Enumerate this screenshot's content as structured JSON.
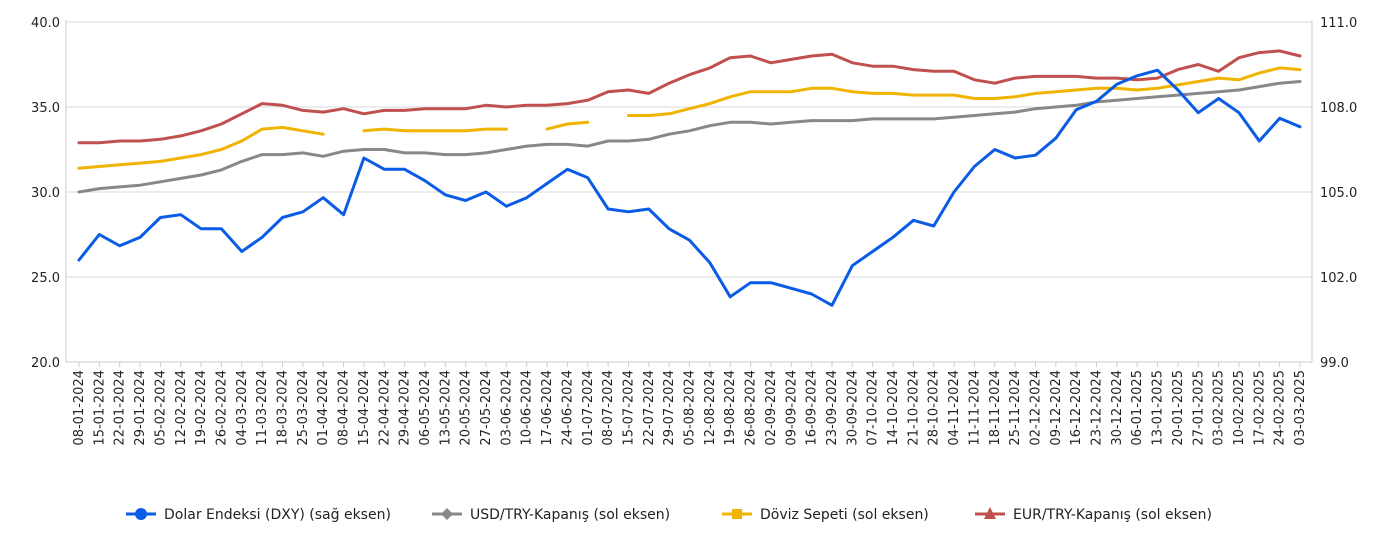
{
  "chart_data": {
    "type": "line",
    "title": "",
    "left_axis": {
      "min": 20.0,
      "max": 40.0,
      "ticks": [
        "20.0",
        "25.0",
        "30.0",
        "35.0",
        "40.0"
      ]
    },
    "right_axis": {
      "min": 99.0,
      "max": 111.0,
      "ticks": [
        "99.0",
        "102.0",
        "105.0",
        "108.0",
        "111.0"
      ]
    },
    "x_labels": [
      "08-01-2024",
      "15-01-2024",
      "22-01-2024",
      "29-01-2024",
      "05-02-2024",
      "12-02-2024",
      "19-02-2024",
      "26-02-2024",
      "04-03-2024",
      "11-03-2024",
      "18-03-2024",
      "25-03-2024",
      "01-04-2024",
      "08-04-2024",
      "15-04-2024",
      "22-04-2024",
      "29-04-2024",
      "06-05-2024",
      "13-05-2024",
      "20-05-2024",
      "27-05-2024",
      "03-06-2024",
      "10-06-2024",
      "17-06-2024",
      "24-06-2024",
      "01-07-2024",
      "08-07-2024",
      "15-07-2024",
      "22-07-2024",
      "29-07-2024",
      "05-08-2024",
      "12-08-2024",
      "19-08-2024",
      "26-08-2024",
      "02-09-2024",
      "09-09-2024",
      "16-09-2024",
      "23-09-2024",
      "30-09-2024",
      "07-10-2024",
      "14-10-2024",
      "21-10-2024",
      "28-10-2024",
      "04-11-2024",
      "11-11-2024",
      "18-11-2024",
      "25-11-2024",
      "02-12-2024",
      "09-12-2024",
      "16-12-2024",
      "23-12-2024",
      "30-12-2024",
      "06-01-2025",
      "13-01-2025",
      "20-01-2025",
      "27-01-2025",
      "03-02-2025",
      "10-02-2025",
      "17-02-2025",
      "24-02-2025",
      "03-03-2025"
    ],
    "grid": "horizontal",
    "legend_position": "bottom",
    "series": [
      {
        "name": "Dolar Endeksi (DXY) (sağ eksen)",
        "axis": "right",
        "color": "#0a5ce6",
        "marker": "circle",
        "values": [
          102.6,
          103.5,
          103.1,
          103.4,
          104.1,
          104.2,
          103.7,
          103.7,
          102.9,
          103.4,
          104.1,
          104.3,
          104.8,
          104.2,
          106.2,
          105.8,
          105.8,
          105.4,
          104.9,
          104.7,
          105.0,
          104.5,
          104.8,
          105.3,
          105.8,
          105.5,
          104.4,
          104.3,
          104.4,
          103.7,
          103.3,
          102.5,
          101.3,
          101.8,
          101.8,
          101.6,
          101.4,
          101.0,
          102.4,
          102.9,
          103.4,
          104.0,
          103.8,
          105.0,
          105.9,
          106.5,
          106.2,
          106.3,
          106.9,
          107.9,
          108.2,
          108.8,
          109.1,
          109.3,
          108.6,
          107.8,
          108.3,
          107.8,
          106.8,
          107.6,
          107.3
        ]
      },
      {
        "name": "USD/TRY-Kapanış (sol eksen)",
        "axis": "left",
        "color": "#888888",
        "marker": "diamond",
        "values": [
          30.0,
          30.2,
          30.3,
          30.4,
          30.6,
          30.8,
          31.0,
          31.3,
          31.8,
          32.2,
          32.2,
          32.3,
          32.1,
          32.4,
          32.5,
          32.5,
          32.3,
          32.3,
          32.2,
          32.2,
          32.3,
          32.5,
          32.7,
          32.8,
          32.8,
          32.7,
          33.0,
          33.0,
          33.1,
          33.4,
          33.6,
          33.9,
          34.1,
          34.1,
          34.0,
          34.1,
          34.2,
          34.2,
          34.2,
          34.3,
          34.3,
          34.3,
          34.3,
          34.4,
          34.5,
          34.6,
          34.7,
          34.9,
          35.0,
          35.1,
          35.3,
          35.4,
          35.5,
          35.6,
          35.7,
          35.8,
          35.9,
          36.0,
          36.2,
          36.4,
          36.5
        ]
      },
      {
        "name": "Döviz Sepeti (sol eksen)",
        "axis": "left",
        "color": "#f0b400",
        "marker": "square",
        "values": [
          31.4,
          31.5,
          31.6,
          31.7,
          31.8,
          32.0,
          32.2,
          32.5,
          33.0,
          33.7,
          33.8,
          33.6,
          33.4,
          null,
          33.6,
          33.7,
          33.6,
          33.6,
          33.6,
          33.6,
          33.7,
          33.7,
          null,
          33.7,
          34.0,
          34.1,
          null,
          34.5,
          34.5,
          34.6,
          34.9,
          35.2,
          35.6,
          35.9,
          35.9,
          35.9,
          36.1,
          36.1,
          35.9,
          35.8,
          35.8,
          35.7,
          35.7,
          35.7,
          35.5,
          35.5,
          35.6,
          35.8,
          35.9,
          36.0,
          36.1,
          36.1,
          36.0,
          36.1,
          36.3,
          36.5,
          36.7,
          36.6,
          37.0,
          37.3,
          37.2
        ]
      },
      {
        "name": "EUR/TRY-Kapanış (sol eksen)",
        "axis": "left",
        "color": "#c0504d",
        "marker": "triangle",
        "values": [
          32.9,
          32.9,
          33.0,
          33.0,
          33.1,
          33.3,
          33.6,
          34.0,
          34.6,
          35.2,
          35.1,
          34.8,
          34.7,
          34.9,
          34.6,
          34.8,
          34.8,
          34.9,
          34.9,
          34.9,
          35.1,
          35.0,
          35.1,
          35.1,
          35.2,
          35.4,
          35.9,
          36.0,
          35.8,
          36.4,
          36.9,
          37.3,
          37.9,
          38.0,
          37.6,
          37.8,
          38.0,
          38.1,
          37.6,
          37.4,
          37.4,
          37.2,
          37.1,
          37.1,
          36.6,
          36.4,
          36.7,
          36.8,
          36.8,
          36.8,
          36.7,
          36.7,
          36.6,
          36.7,
          37.2,
          37.5,
          37.1,
          37.9,
          38.2,
          38.3,
          38.0
        ]
      }
    ]
  }
}
